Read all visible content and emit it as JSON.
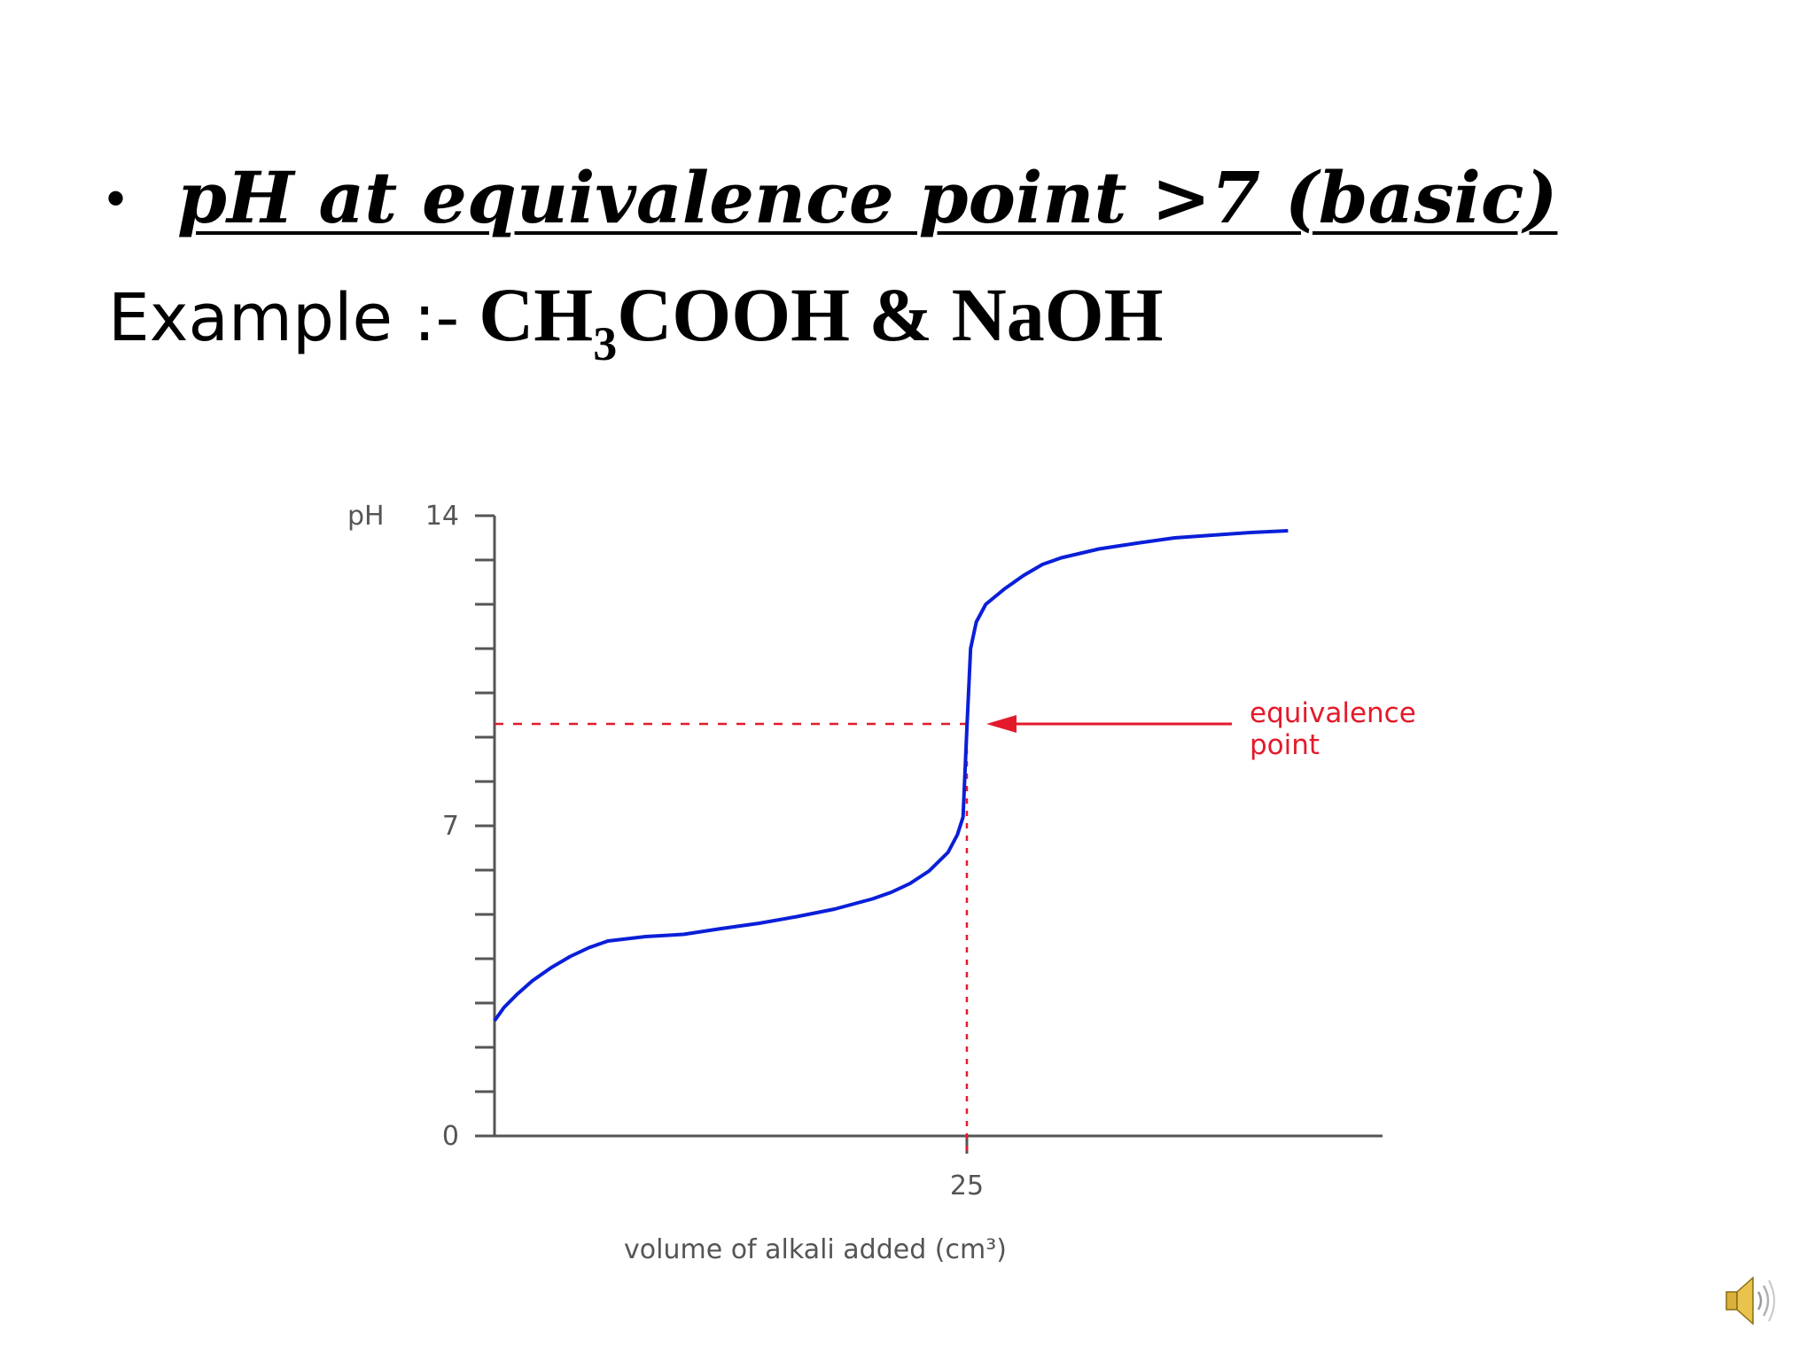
{
  "slide": {
    "bullet": "•",
    "heading": "pH at equivalence point >7 (basic)",
    "example_label": "Example :-",
    "formula_part1": "CH",
    "formula_sub": "3",
    "formula_part2": "COOH & NaOH"
  },
  "chart_data": {
    "type": "line",
    "title": "",
    "xlabel": "volume of alkali added (cm³)",
    "ylabel": "pH",
    "xlim": [
      0,
      47
    ],
    "ylim": [
      0,
      14
    ],
    "x_tick_labels": [
      "25"
    ],
    "y_tick_labels": [
      "14",
      "7",
      "0"
    ],
    "series": [
      {
        "color": "#0a1fd8",
        "x": [
          0,
          0.5,
          1.2,
          2,
          3,
          4,
          5,
          6,
          8,
          10,
          12,
          14,
          16,
          18,
          20,
          21,
          22,
          23,
          24,
          24.5,
          24.8,
          25,
          25.2,
          25.5,
          26,
          27,
          28,
          29,
          30,
          32,
          34,
          36,
          38,
          40,
          42
        ],
        "y": [
          2.6,
          2.9,
          3.2,
          3.5,
          3.8,
          4.05,
          4.25,
          4.4,
          4.5,
          4.55,
          4.68,
          4.8,
          4.95,
          5.12,
          5.35,
          5.5,
          5.7,
          5.98,
          6.4,
          6.8,
          7.2,
          9.2,
          11.0,
          11.6,
          12.0,
          12.35,
          12.65,
          12.9,
          13.05,
          13.25,
          13.38,
          13.5,
          13.56,
          13.62,
          13.66
        ]
      }
    ],
    "equivalence_point": {
      "x": 25,
      "y": 9.3
    },
    "annotation": "equivalence point",
    "annotation_color": "#e31a2a",
    "axis_color": "#555555"
  }
}
